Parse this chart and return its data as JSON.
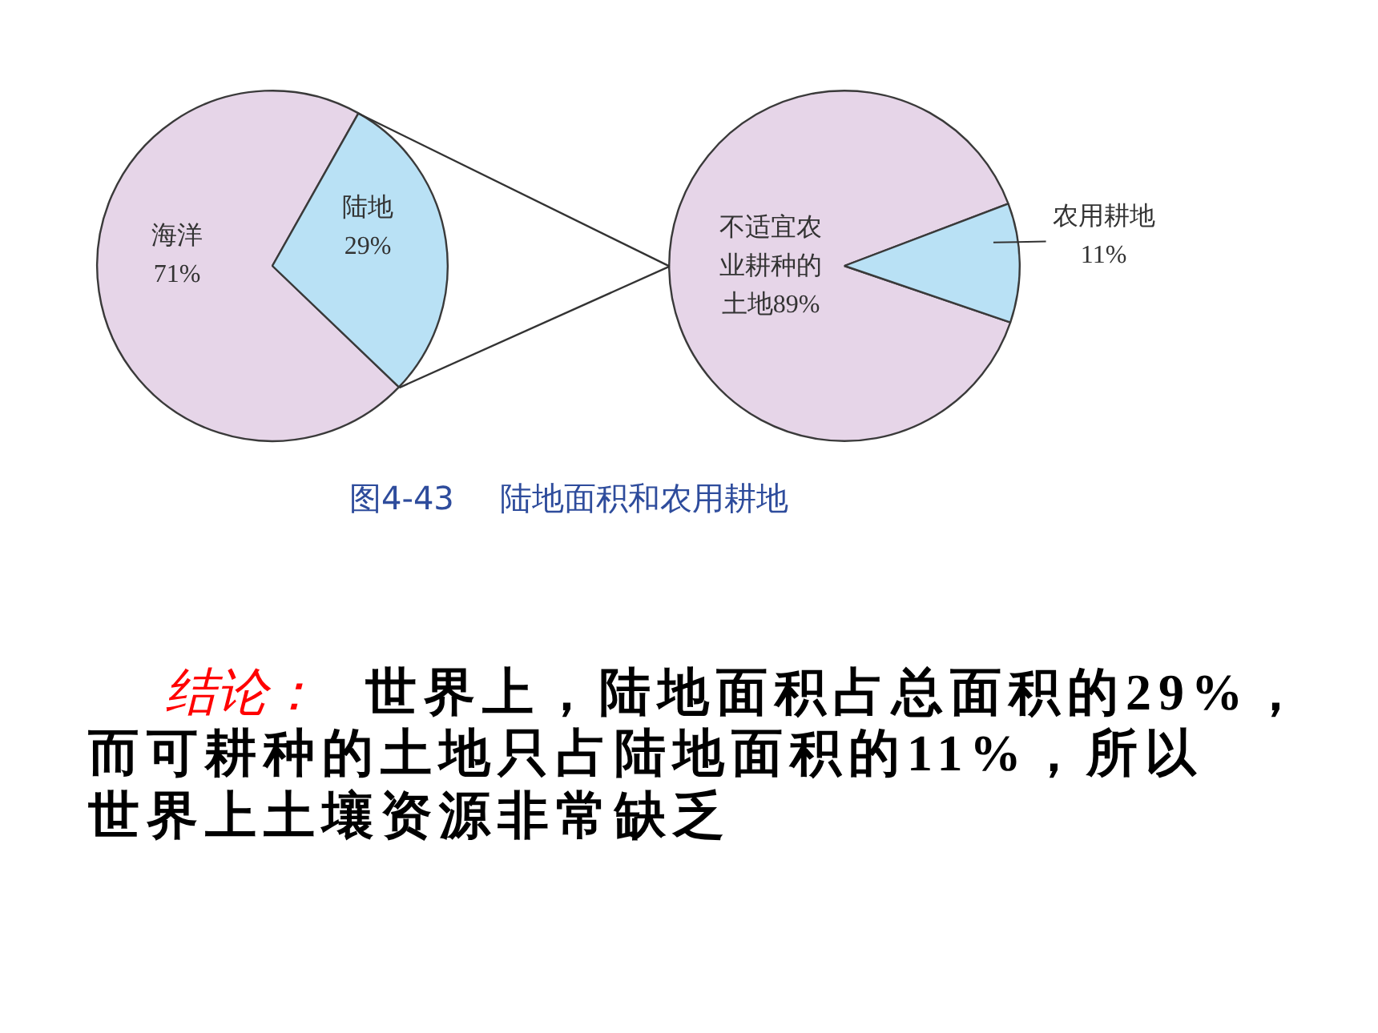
{
  "chart_data": [
    {
      "type": "pie",
      "categories": [
        "海洋",
        "陆地"
      ],
      "values": [
        71,
        29
      ],
      "colors": [
        "#e6d5e8",
        "#b9e1f5"
      ],
      "value_labels": [
        "71%",
        "29%"
      ]
    },
    {
      "type": "pie",
      "categories": [
        "不适宜农业耕种的土地",
        "农用耕地"
      ],
      "values": [
        89,
        11
      ],
      "colors": [
        "#e6d5e8",
        "#b9e1f5"
      ],
      "value_labels": [
        "89%",
        "11%"
      ]
    },
    {
      "type": "other",
      "annotations": [
        "图4-43  陆地面积和农用耕地",
        "结论：",
        "世界上，陆地面积占总面积的29%，",
        "而可耕种的土地只占陆地面积的11%，所以",
        "世界上土壤资源非常缺乏"
      ]
    }
  ]
}
